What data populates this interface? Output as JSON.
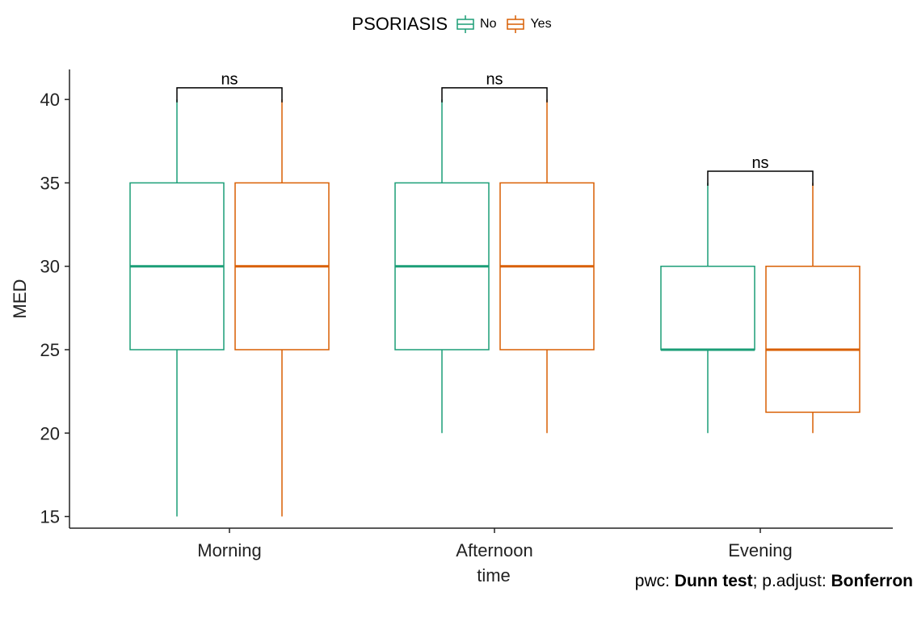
{
  "chart_data": {
    "type": "boxplot",
    "xlabel": "time",
    "ylabel": "MED",
    "categories": [
      "Morning",
      "Afternoon",
      "Evening"
    ],
    "ylim": [
      14.3,
      41.8
    ],
    "yticks": [
      15,
      20,
      25,
      30,
      35,
      40
    ],
    "legend": {
      "title": "PSORIASIS",
      "position": "top",
      "entries": [
        {
          "name": "No",
          "color": "#1B9E77"
        },
        {
          "name": "Yes",
          "color": "#D95F02"
        }
      ]
    },
    "series": [
      {
        "name": "No",
        "color": "#1B9E77",
        "boxes": [
          {
            "min": 15,
            "q1": 25,
            "median": 30,
            "q3": 35,
            "max": 40
          },
          {
            "min": 20,
            "q1": 25,
            "median": 30,
            "q3": 35,
            "max": 40
          },
          {
            "min": 20,
            "q1": 25,
            "median": 25,
            "q3": 30,
            "max": 35
          }
        ]
      },
      {
        "name": "Yes",
        "color": "#D95F02",
        "boxes": [
          {
            "min": 15,
            "q1": 25,
            "median": 30,
            "q3": 35,
            "max": 40
          },
          {
            "min": 20,
            "q1": 25,
            "median": 30,
            "q3": 35,
            "max": 40
          },
          {
            "min": 20,
            "q1": 21.25,
            "median": 25,
            "q3": 30,
            "max": 35
          }
        ]
      }
    ],
    "annotations": [
      {
        "category": "Morning",
        "label": "ns",
        "y": 40.7
      },
      {
        "category": "Afternoon",
        "label": "ns",
        "y": 40.7
      },
      {
        "category": "Evening",
        "label": "ns",
        "y": 35.7
      }
    ],
    "caption": {
      "pwc_label": "pwc: ",
      "pwc_value": "Dunn test",
      "sep": "; p.adjust: ",
      "adjust_value": "Bonferron"
    }
  }
}
